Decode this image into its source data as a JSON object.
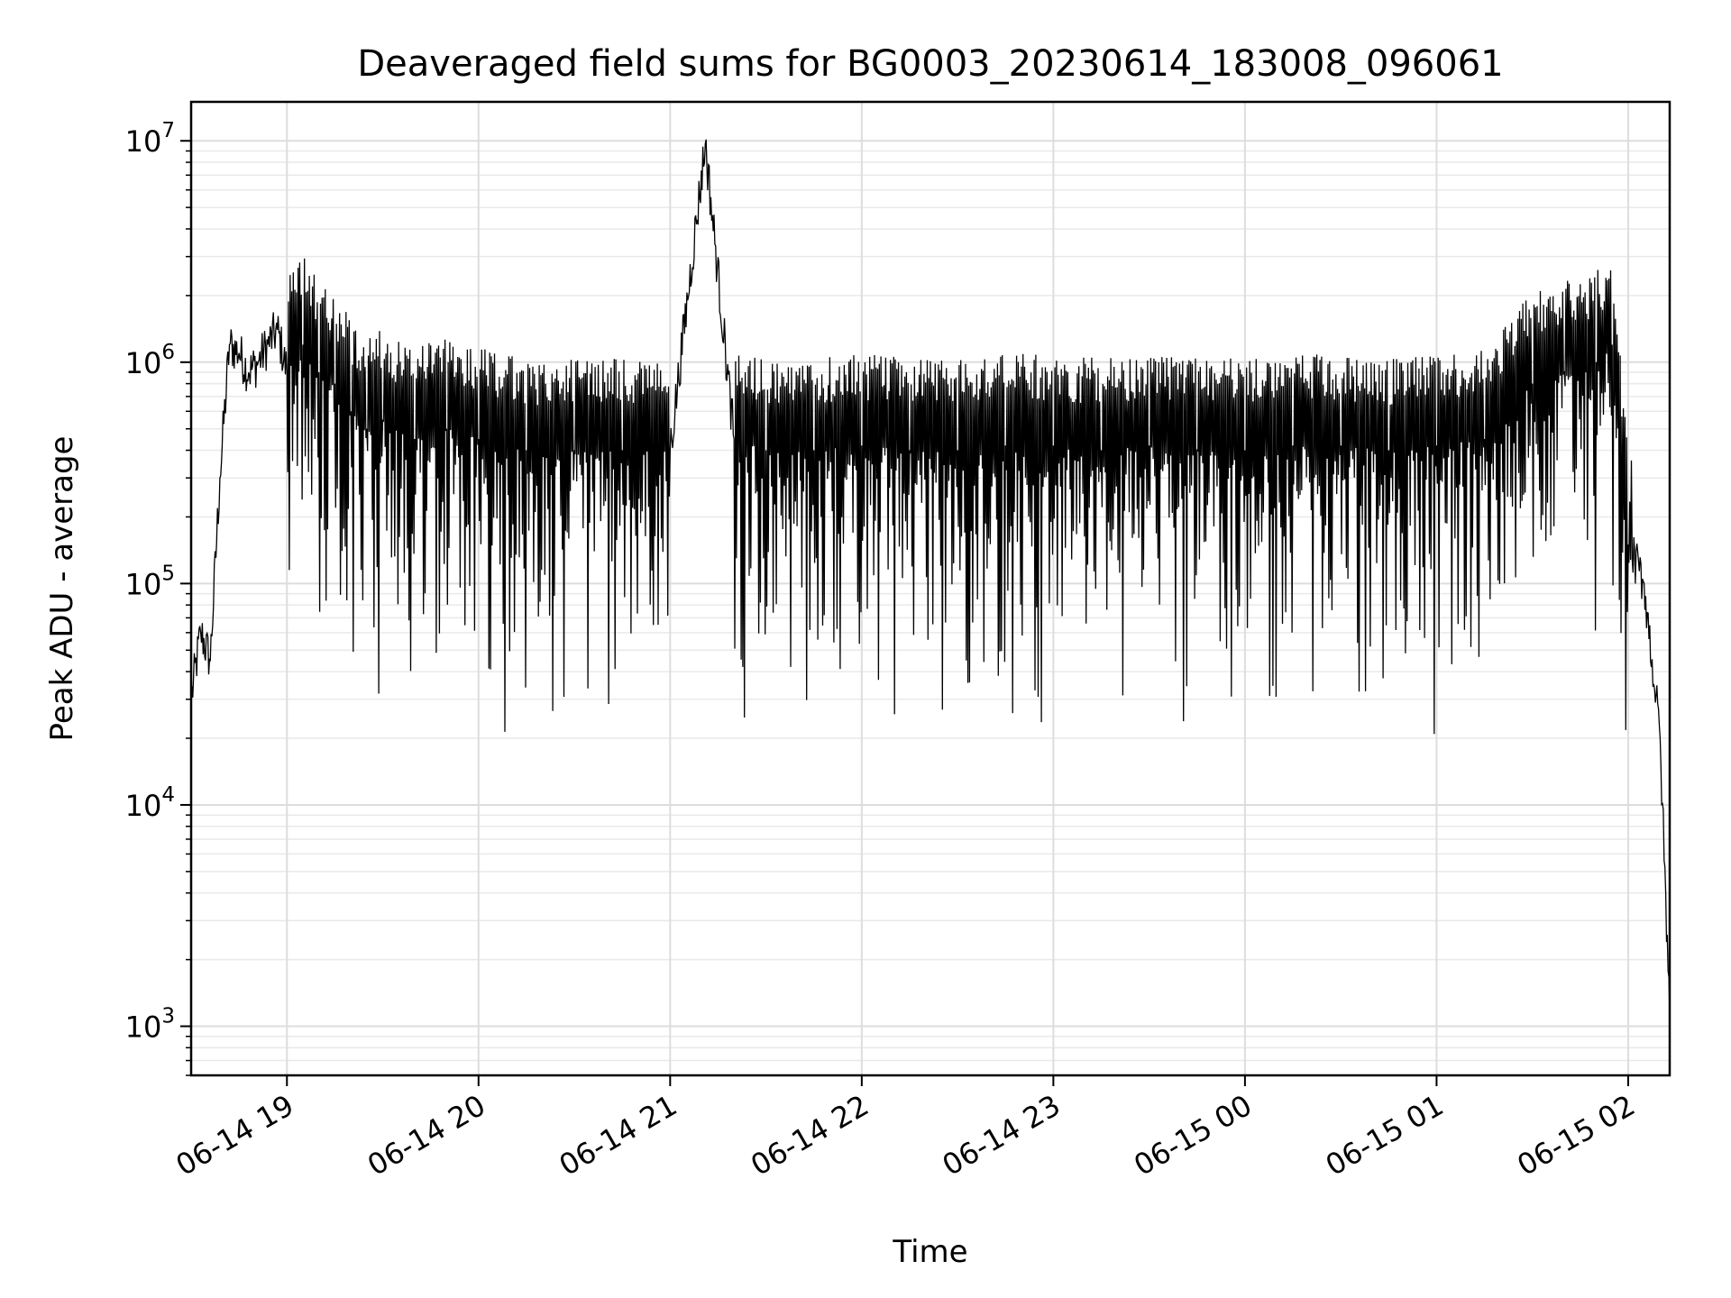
{
  "chart_data": {
    "type": "line",
    "title": "Deaveraged field sums for BG0003_20230614_183008_096061",
    "xlabel": "Time",
    "ylabel": "Peak ADU - average",
    "yscale": "log",
    "ylim": [
      600,
      15000000
    ],
    "xlim": [
      "06-14 18:30",
      "06-15 02:13"
    ],
    "x_ticks": [
      "06-14 19",
      "06-14 20",
      "06-14 21",
      "06-14 22",
      "06-14 23",
      "06-15 00",
      "06-15 01",
      "06-15 02"
    ],
    "y_ticks": [
      {
        "base": "10",
        "exp": "3",
        "value": 1000
      },
      {
        "base": "10",
        "exp": "4",
        "value": 10000
      },
      {
        "base": "10",
        "exp": "5",
        "value": 100000
      },
      {
        "base": "10",
        "exp": "6",
        "value": 1000000
      },
      {
        "base": "10",
        "exp": "7",
        "value": 10000000
      }
    ],
    "grid": true,
    "line_color": "#000000",
    "series": [
      {
        "x": [
          "06-14 18:30",
          "06-14 18:33",
          "06-14 18:36",
          "06-14 18:39",
          "06-14 18:42",
          "06-14 18:45",
          "06-14 18:48",
          "06-14 18:51",
          "06-14 18:54",
          "06-14 18:57",
          "06-14 19:00",
          "06-14 19:05",
          "06-14 19:10",
          "06-14 19:15",
          "06-14 19:20",
          "06-14 19:25",
          "06-14 19:30",
          "06-14 19:40",
          "06-14 19:50",
          "06-14 20:00",
          "06-14 20:15",
          "06-14 20:30",
          "06-14 20:45",
          "06-14 21:00",
          "06-14 21:11",
          "06-14 21:20",
          "06-14 21:30",
          "06-14 21:45",
          "06-14 22:00",
          "06-14 22:15",
          "06-14 22:30",
          "06-14 22:45",
          "06-14 23:00",
          "06-14 23:15",
          "06-14 23:30",
          "06-14 23:45",
          "06-15 00:00",
          "06-15 00:15",
          "06-15 00:30",
          "06-15 00:45",
          "06-15 01:00",
          "06-15 01:15",
          "06-15 01:30",
          "06-15 01:40",
          "06-15 01:50",
          "06-15 01:55",
          "06-15 02:00",
          "06-15 02:05",
          "06-15 02:10",
          "06-15 02:13"
        ],
        "y": [
          30000,
          60000,
          45000,
          300000,
          1200000,
          1100000,
          900000,
          1000000,
          1200000,
          1400000,
          900000,
          1200000,
          900000,
          800000,
          600000,
          500000,
          550000,
          450000,
          500000,
          450000,
          400000,
          400000,
          400000,
          400000,
          9700000,
          450000,
          400000,
          400000,
          420000,
          400000,
          400000,
          420000,
          420000,
          400000,
          420000,
          400000,
          400000,
          420000,
          420000,
          400000,
          420000,
          450000,
          800000,
          900000,
          1000000,
          1200000,
          150000,
          100000,
          20000,
          1100
        ]
      }
    ]
  }
}
